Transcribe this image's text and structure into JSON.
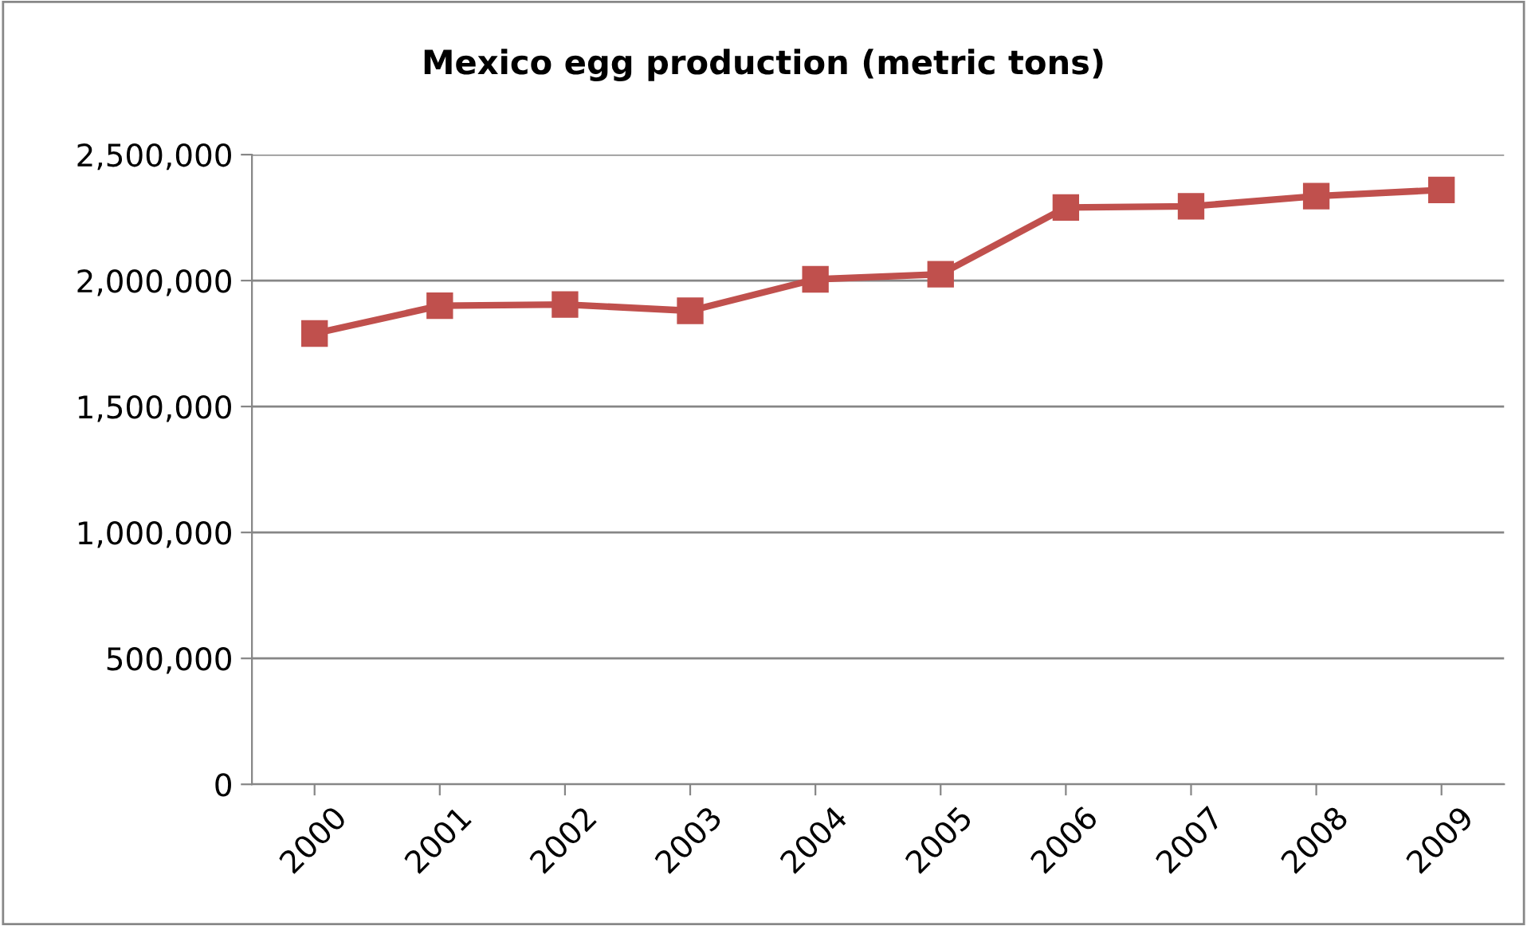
{
  "chart_data": {
    "type": "line",
    "title": "Mexico egg production (metric tons)",
    "categories": [
      "2000",
      "2001",
      "2002",
      "2003",
      "2004",
      "2005",
      "2006",
      "2007",
      "2008",
      "2009"
    ],
    "series": [
      {
        "color": "#c0504d",
        "values": [
          1790000,
          1900000,
          1905000,
          1880000,
          2005000,
          2025000,
          2290000,
          2295000,
          2335000,
          2360000
        ]
      }
    ],
    "ylim": [
      0,
      2500000
    ],
    "yticks": [
      {
        "value": 0,
        "label": "0"
      },
      {
        "value": 500000,
        "label": "500,000"
      },
      {
        "value": 1000000,
        "label": "1,000,000"
      },
      {
        "value": 1500000,
        "label": "1,500,000"
      },
      {
        "value": 2000000,
        "label": "2,000,000"
      },
      {
        "value": 2500000,
        "label": "2,500,000"
      }
    ],
    "grid": "y",
    "marker": "square",
    "line_style": "solid"
  }
}
